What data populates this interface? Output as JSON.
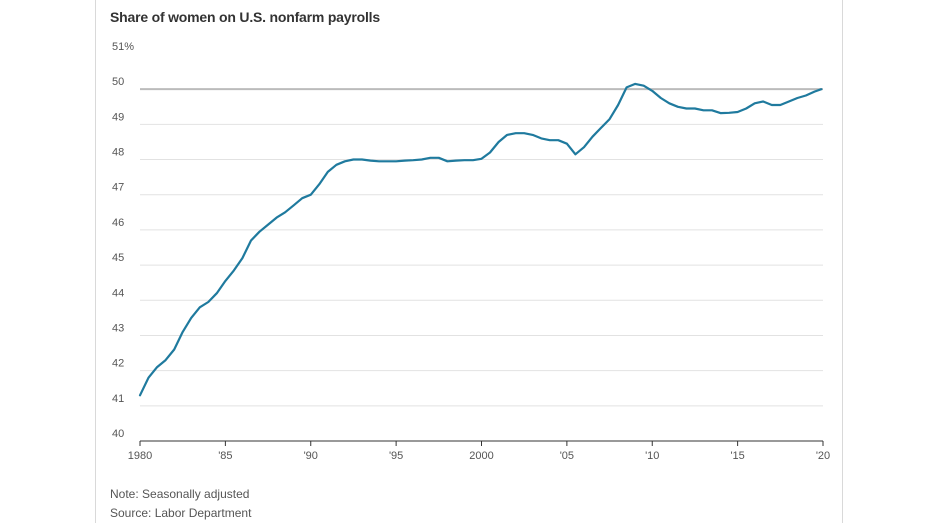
{
  "chart_data": {
    "type": "line",
    "title": "Share of women on U.S. nonfarm payrolls",
    "xlabel": "",
    "ylabel": "",
    "xlim": [
      1980,
      2020
    ],
    "ylim": [
      40,
      51
    ],
    "y_ticks": [
      40,
      41,
      42,
      43,
      44,
      45,
      46,
      47,
      48,
      49,
      50
    ],
    "y_tick_labels": [
      "40",
      "41",
      "42",
      "43",
      "44",
      "45",
      "46",
      "47",
      "48",
      "49",
      "50"
    ],
    "y_top_label": "51%",
    "x_ticks": [
      1980,
      1985,
      1990,
      1995,
      2000,
      2005,
      2010,
      2015,
      2020
    ],
    "x_tick_labels": [
      "1980",
      "'85",
      "'90",
      "'95",
      "2000",
      "'05",
      "'10",
      "'15",
      "'20"
    ],
    "grid": true,
    "reference_line": 50,
    "line_color": "#1f7a9e",
    "reference_color": "#bbbbbb",
    "series": [
      {
        "x": [
          1980.0,
          1980.5,
          1981.0,
          1981.5,
          1982.0,
          1982.5,
          1983.0,
          1983.5,
          1984.0,
          1984.5,
          1985.0,
          1985.5,
          1986.0,
          1986.5,
          1987.0,
          1987.5,
          1988.0,
          1988.5,
          1989.0,
          1989.5,
          1990.0,
          1990.5,
          1991.0,
          1991.5,
          1992.0,
          1992.5,
          1993.0,
          1993.5,
          1994.0,
          1994.5,
          1995.0,
          1995.5,
          1996.0,
          1996.5,
          1997.0,
          1997.5,
          1998.0,
          1998.5,
          1999.0,
          1999.5,
          2000.0,
          2000.5,
          2001.0,
          2001.5,
          2002.0,
          2002.5,
          2003.0,
          2003.5,
          2004.0,
          2004.5,
          2005.0,
          2005.5,
          2006.0,
          2006.5,
          2007.0,
          2007.5,
          2008.0,
          2008.5,
          2009.0,
          2009.5,
          2010.0,
          2010.5,
          2011.0,
          2011.5,
          2012.0,
          2012.5,
          2013.0,
          2013.5,
          2014.0,
          2014.5,
          2015.0,
          2015.5,
          2016.0,
          2016.5,
          2017.0,
          2017.5,
          2018.0,
          2018.5,
          2019.0,
          2019.5,
          2019.9
        ],
        "values": [
          41.3,
          41.8,
          42.1,
          42.3,
          42.6,
          43.1,
          43.5,
          43.8,
          43.95,
          44.2,
          44.55,
          44.85,
          45.2,
          45.7,
          45.95,
          46.15,
          46.35,
          46.5,
          46.7,
          46.9,
          47.0,
          47.3,
          47.65,
          47.85,
          47.95,
          48.0,
          48.0,
          47.97,
          47.95,
          47.95,
          47.95,
          47.97,
          47.98,
          48.0,
          48.05,
          48.05,
          47.95,
          47.97,
          47.98,
          47.98,
          48.02,
          48.2,
          48.5,
          48.7,
          48.75,
          48.75,
          48.7,
          48.6,
          48.55,
          48.55,
          48.45,
          48.15,
          48.35,
          48.65,
          48.9,
          49.15,
          49.55,
          50.05,
          50.15,
          50.1,
          49.95,
          49.75,
          49.6,
          49.5,
          49.45,
          49.45,
          49.4,
          49.4,
          49.32,
          49.33,
          49.35,
          49.45,
          49.6,
          49.65,
          49.55,
          49.55,
          49.65,
          49.75,
          49.82,
          49.93,
          50.0
        ]
      }
    ]
  },
  "notes": {
    "note": "Note: Seasonally adjusted",
    "source": "Source: Labor Department"
  }
}
